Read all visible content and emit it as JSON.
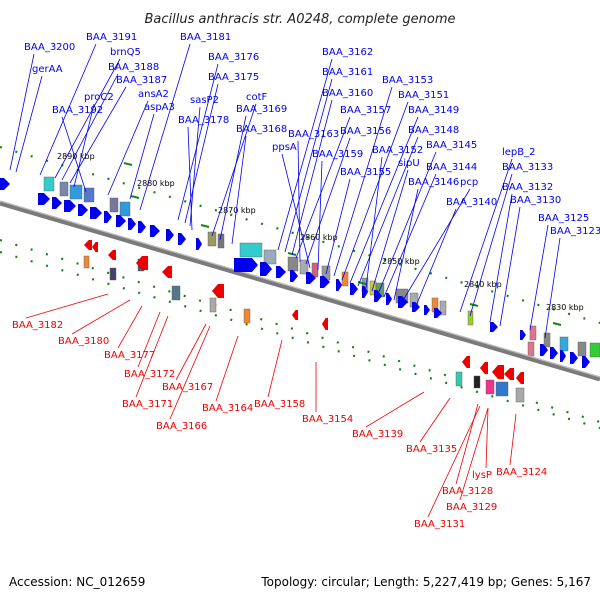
{
  "title": "Bacillus anthracis str. A0248, complete genome",
  "footer": {
    "accession": "Accession: NC_012659",
    "stats": "Topology: circular; Length: 5,227,419 bp; Genes: 5,167"
  },
  "colors": {
    "forward": "#0000ee",
    "reverse": "#ee0000",
    "backbone": "#707070",
    "gridline": "#118811"
  },
  "ticks": [
    "2890 kbp",
    "2880 kbp",
    "2870 kbp",
    "2860 kbp",
    "2850 kbp",
    "2840 kbp",
    "2830 kbp"
  ],
  "forward_labels": [
    "BAA_3200",
    "gerAA",
    "BAA_3191",
    "brnQ5",
    "BAA_3188",
    "BAA_3187",
    "proC2",
    "BAA_3192",
    "ansA2",
    "aspA3",
    "BAA_3181",
    "BAA_3176",
    "BAA_3175",
    "sasP2",
    "BAA_3178",
    "cotF",
    "BAA_3169",
    "BAA_3168",
    "BAA_3162",
    "BAA_3161",
    "BAA_3160",
    "BAA_3157",
    "BAA_3163",
    "BAA_3156",
    "ppsA",
    "BAA_3159",
    "BAA_3155",
    "BAA_3153",
    "BAA_3151",
    "BAA_3149",
    "BAA_3148",
    "BAA_3152",
    "sipU",
    "BAA_3145",
    "BAA_3144",
    "BAA_3146",
    "pcp",
    "BAA_3140",
    "lepB_2",
    "BAA_3133",
    "BAA_3132",
    "BAA_3130",
    "BAA_3125",
    "BAA_3123"
  ],
  "reverse_labels": [
    "BAA_3182",
    "BAA_3180",
    "BAA_3177",
    "BAA_3172",
    "BAA_3171",
    "BAA_3167",
    "BAA_3166",
    "BAA_3164",
    "BAA_3158",
    "BAA_3154",
    "BAA_3139",
    "BAA_3135",
    "BAA_3128",
    "lysP",
    "BAA_3124",
    "BAA_3129",
    "BAA_3131"
  ]
}
